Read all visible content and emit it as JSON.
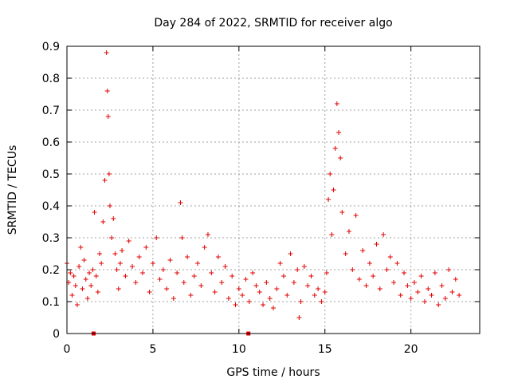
{
  "chart_data": {
    "type": "scatter",
    "title": "Day 284 of 2022, SRMTID for receiver algo",
    "xlabel": "GPS time / hours",
    "ylabel": "SRMTID / TECUs",
    "xlim": [
      0,
      24
    ],
    "ylim": [
      0,
      0.9
    ],
    "xticks": [
      0,
      5,
      10,
      15,
      20
    ],
    "xtick_labels": [
      "0",
      "5",
      "10",
      "15",
      "20"
    ],
    "yticks": [
      0,
      0.1,
      0.2,
      0.3,
      0.4,
      0.5,
      0.6,
      0.7,
      0.8,
      0.9
    ],
    "ytick_labels": [
      "0",
      "0.1",
      "0.2",
      "0.3",
      "0.4",
      "0.5",
      "0.6",
      "0.7",
      "0.8",
      "0.9"
    ],
    "grid": true,
    "marker": "plus",
    "color": "#e00000",
    "gap_markers_x": [
      1.55,
      10.55
    ],
    "series": [
      {
        "name": "SRMTID",
        "x": [
          0.0,
          0.1,
          0.2,
          0.3,
          0.4,
          0.5,
          0.6,
          0.7,
          0.8,
          0.9,
          1.0,
          1.1,
          1.2,
          1.3,
          1.4,
          1.5,
          1.6,
          1.7,
          1.8,
          1.9,
          2.0,
          2.1,
          2.2,
          2.3,
          2.35,
          2.4,
          2.45,
          2.5,
          2.6,
          2.7,
          2.8,
          2.9,
          3.0,
          3.1,
          3.2,
          3.4,
          3.6,
          3.8,
          4.0,
          4.2,
          4.4,
          4.6,
          4.8,
          5.0,
          5.2,
          5.4,
          5.6,
          5.8,
          6.0,
          6.2,
          6.4,
          6.6,
          6.7,
          6.8,
          7.0,
          7.2,
          7.4,
          7.6,
          7.8,
          8.0,
          8.2,
          8.4,
          8.6,
          8.8,
          9.0,
          9.2,
          9.4,
          9.6,
          9.8,
          10.0,
          10.2,
          10.4,
          10.6,
          10.8,
          11.0,
          11.2,
          11.4,
          11.6,
          11.8,
          12.0,
          12.2,
          12.4,
          12.6,
          12.8,
          13.0,
          13.2,
          13.4,
          13.5,
          13.6,
          13.8,
          14.0,
          14.2,
          14.4,
          14.6,
          14.8,
          15.0,
          15.1,
          15.2,
          15.3,
          15.4,
          15.5,
          15.6,
          15.7,
          15.8,
          15.9,
          16.0,
          16.2,
          16.4,
          16.6,
          16.8,
          17.0,
          17.2,
          17.4,
          17.6,
          17.8,
          18.0,
          18.2,
          18.4,
          18.6,
          18.8,
          19.0,
          19.2,
          19.4,
          19.6,
          19.8,
          20.0,
          20.2,
          20.4,
          20.6,
          20.8,
          21.0,
          21.2,
          21.4,
          21.6,
          21.8,
          22.0,
          22.2,
          22.4,
          22.6,
          22.8
        ],
        "y": [
          0.22,
          0.16,
          0.19,
          0.12,
          0.18,
          0.15,
          0.09,
          0.21,
          0.27,
          0.14,
          0.23,
          0.17,
          0.11,
          0.19,
          0.15,
          0.2,
          0.38,
          0.18,
          0.13,
          0.25,
          0.22,
          0.35,
          0.48,
          0.88,
          0.76,
          0.68,
          0.5,
          0.4,
          0.3,
          0.36,
          0.25,
          0.2,
          0.14,
          0.22,
          0.26,
          0.18,
          0.29,
          0.21,
          0.16,
          0.24,
          0.19,
          0.27,
          0.13,
          0.22,
          0.3,
          0.17,
          0.2,
          0.14,
          0.23,
          0.11,
          0.19,
          0.41,
          0.3,
          0.16,
          0.24,
          0.12,
          0.18,
          0.22,
          0.15,
          0.27,
          0.31,
          0.19,
          0.13,
          0.24,
          0.16,
          0.21,
          0.11,
          0.18,
          0.09,
          0.14,
          0.12,
          0.17,
          0.1,
          0.19,
          0.15,
          0.13,
          0.09,
          0.16,
          0.11,
          0.08,
          0.14,
          0.22,
          0.18,
          0.12,
          0.25,
          0.16,
          0.2,
          0.05,
          0.1,
          0.21,
          0.15,
          0.18,
          0.12,
          0.14,
          0.1,
          0.13,
          0.19,
          0.42,
          0.5,
          0.31,
          0.45,
          0.58,
          0.72,
          0.63,
          0.55,
          0.38,
          0.25,
          0.32,
          0.2,
          0.37,
          0.17,
          0.26,
          0.15,
          0.22,
          0.18,
          0.28,
          0.14,
          0.31,
          0.2,
          0.24,
          0.16,
          0.22,
          0.12,
          0.19,
          0.15,
          0.11,
          0.16,
          0.13,
          0.18,
          0.1,
          0.14,
          0.12,
          0.19,
          0.09,
          0.15,
          0.11,
          0.2,
          0.13,
          0.17,
          0.12
        ]
      }
    ]
  }
}
